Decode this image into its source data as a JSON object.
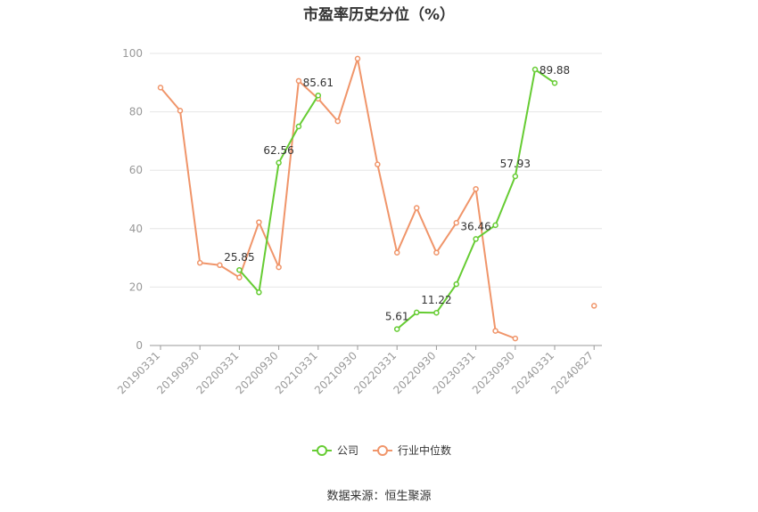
{
  "chart_data": {
    "type": "line",
    "title": "市盈率历史分位（%）",
    "x_ticks": [
      "20190331",
      "20190930",
      "20200331",
      "20200930",
      "20210331",
      "20210930",
      "20220331",
      "20220930",
      "20230331",
      "20230930",
      "20240331",
      "20240827"
    ],
    "ylim": [
      0,
      100
    ],
    "y_ticks": [
      0,
      20,
      40,
      60,
      80,
      100
    ],
    "grid": true,
    "legend_position": "bottom-center",
    "series": [
      {
        "name": "公司",
        "color": "#66cc33",
        "points": [
          {
            "x": "20200331",
            "y": 25.85
          },
          {
            "x": "20200630",
            "y": 18.2
          },
          {
            "x": "20200930",
            "y": 62.56
          },
          {
            "x": "20201231",
            "y": 75.0
          },
          {
            "x": "20210331",
            "y": 85.61
          },
          {
            "x": "20220331",
            "y": 5.61
          },
          {
            "x": "20220630",
            "y": 11.3
          },
          {
            "x": "20220930",
            "y": 11.22
          },
          {
            "x": "20221231",
            "y": 21.0
          },
          {
            "x": "20230331",
            "y": 36.46
          },
          {
            "x": "20230630",
            "y": 41.2
          },
          {
            "x": "20230930",
            "y": 57.93
          },
          {
            "x": "20231231",
            "y": 94.5
          },
          {
            "x": "20240331",
            "y": 89.88
          }
        ],
        "labels": [
          {
            "x": "20200331",
            "y": 25.85,
            "text": "25.85"
          },
          {
            "x": "20200930",
            "y": 62.56,
            "text": "62.56"
          },
          {
            "x": "20210331",
            "y": 85.61,
            "text": "85.61"
          },
          {
            "x": "20220331",
            "y": 5.61,
            "text": "5.61"
          },
          {
            "x": "20220930",
            "y": 11.22,
            "text": "11.22"
          },
          {
            "x": "20230331",
            "y": 36.46,
            "text": "36.46"
          },
          {
            "x": "20230930",
            "y": 57.93,
            "text": "57.93"
          },
          {
            "x": "20240331",
            "y": 89.88,
            "text": "89.88"
          }
        ]
      },
      {
        "name": "行业中位数",
        "color": "#f0956a",
        "points": [
          {
            "x": "20190331",
            "y": 88.3
          },
          {
            "x": "20190630",
            "y": 80.4
          },
          {
            "x": "20190930",
            "y": 28.3
          },
          {
            "x": "20191231",
            "y": 27.5
          },
          {
            "x": "20200331",
            "y": 23.3
          },
          {
            "x": "20200630",
            "y": 42.2
          },
          {
            "x": "20200930",
            "y": 26.8
          },
          {
            "x": "20201231",
            "y": 90.6
          },
          {
            "x": "20210331",
            "y": 84.5
          },
          {
            "x": "20210630",
            "y": 76.8
          },
          {
            "x": "20210930",
            "y": 98.2
          },
          {
            "x": "20211231",
            "y": 62.0
          },
          {
            "x": "20220331",
            "y": 31.8
          },
          {
            "x": "20220630",
            "y": 47.1
          },
          {
            "x": "20220930",
            "y": 31.8
          },
          {
            "x": "20221231",
            "y": 42.0
          },
          {
            "x": "20230331",
            "y": 53.6
          },
          {
            "x": "20230630",
            "y": 5.0
          },
          {
            "x": "20230930",
            "y": 2.4
          },
          {
            "x": "20240827",
            "y": 13.6
          }
        ]
      }
    ]
  },
  "source_text": "数据来源：恒生聚源"
}
